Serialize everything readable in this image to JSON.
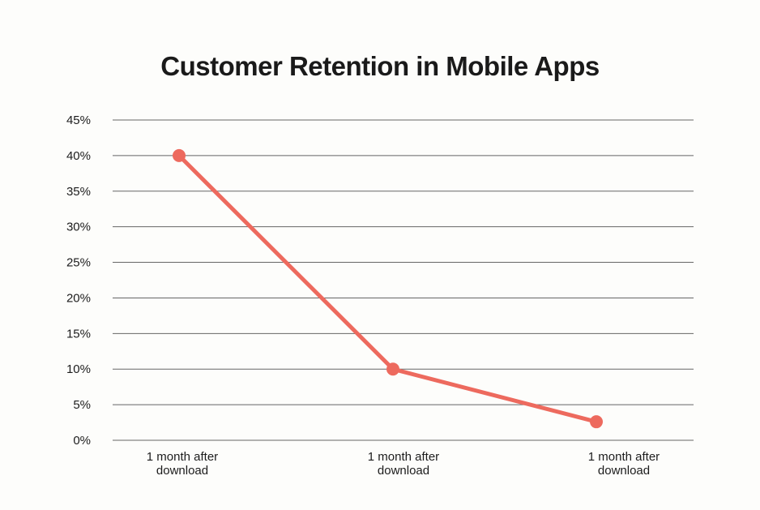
{
  "page": {
    "background": "#fdfdfb"
  },
  "chart_data": {
    "type": "line",
    "title": "Customer Retention in Mobile Apps",
    "categories": [
      "1 month after download",
      "1 month after download",
      "1 month after download"
    ],
    "series": [
      {
        "name": "retention",
        "values": [
          40,
          10,
          2.6
        ]
      }
    ],
    "xlabel": "",
    "ylabel": "",
    "ylim": [
      0,
      45
    ],
    "ytick_step": 5,
    "ytick_labels": [
      "0%",
      "5%",
      "10%",
      "15%",
      "20%",
      "25%",
      "30%",
      "35%",
      "40%",
      "45%"
    ],
    "grid": true,
    "legend": false,
    "line_color": "#ed6a5e",
    "gridline_color": "#666666",
    "axis_label_color": "#1c1c1c",
    "title_color": "#1a1a1a"
  }
}
